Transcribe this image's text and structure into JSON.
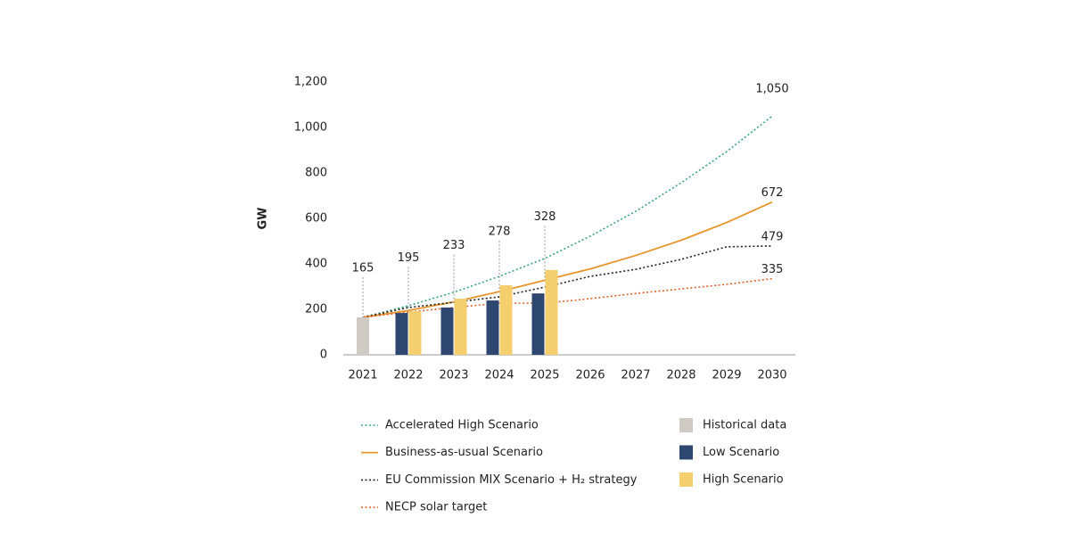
{
  "chart_data": {
    "type": "bar",
    "y_label": "GW",
    "categories": [
      "2021",
      "2022",
      "2023",
      "2024",
      "2025",
      "2026",
      "2027",
      "2028",
      "2029",
      "2030"
    ],
    "ylim": [
      0,
      1200
    ],
    "yticks": [
      0,
      200,
      400,
      600,
      800,
      {
        "value": 1000,
        "label": "1,000"
      },
      {
        "value": 1200,
        "label": "1,200"
      }
    ],
    "series": [
      {
        "name": "Accelerated High Scenario",
        "type": "line",
        "dashed": true,
        "color": "#3aa57a",
        "values": [
          165,
          216,
          275,
          345,
          424,
          522,
          631,
          757,
          894,
          1050
        ],
        "value_labels": [
          null,
          null,
          null,
          null,
          null,
          null,
          null,
          null,
          null,
          "1,050"
        ]
      },
      {
        "name": "Business-as-usual Scenario",
        "type": "line",
        "dashed": false,
        "color": "#e8942a",
        "values": [
          165,
          195,
          233,
          278,
          328,
          378,
          437,
          504,
          582,
          672
        ],
        "value_labels": [
          "165",
          "195",
          "233",
          "278",
          "328",
          null,
          null,
          null,
          null,
          "672"
        ]
      },
      {
        "name": "EU Commission MIX Scenario + H₂ strategy",
        "type": "line",
        "dashed": true,
        "color": "#222222",
        "values": [
          165,
          208,
          231,
          255,
          298,
          345,
          376,
          420,
          475,
          479
        ],
        "value_labels": [
          null,
          null,
          null,
          null,
          null,
          null,
          null,
          null,
          null,
          "479"
        ]
      },
      {
        "name": "NECP solar target",
        "type": "line",
        "dashed": true,
        "color": "#e0622a",
        "values": [
          165,
          188,
          208,
          227,
          227,
          247,
          270,
          290,
          310,
          335
        ],
        "value_labels": [
          null,
          null,
          null,
          null,
          null,
          null,
          null,
          null,
          null,
          "335"
        ]
      },
      {
        "name": "Historical data",
        "type": "bar",
        "color": "#cfcbc4",
        "values": [
          165,
          null,
          null,
          null,
          null,
          null,
          null,
          null,
          null,
          null
        ]
      },
      {
        "name": "Low Scenario",
        "type": "bar",
        "color": "#2d4770",
        "values": [
          null,
          184,
          208,
          239,
          270,
          null,
          null,
          null,
          null,
          null
        ]
      },
      {
        "name": "High Scenario",
        "type": "bar",
        "color": "#f5cf6e",
        "values": [
          null,
          192,
          247,
          306,
          373,
          null,
          null,
          null,
          null,
          null
        ]
      }
    ]
  }
}
